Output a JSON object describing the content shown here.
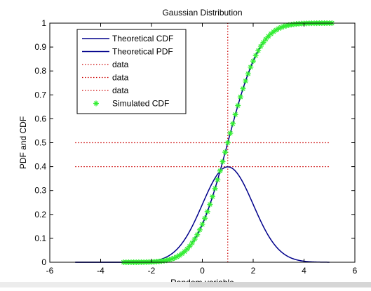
{
  "chart_data": {
    "type": "line",
    "title": "Gaussian Distribution",
    "xlabel": "Random variable",
    "ylabel": "PDF and CDF",
    "xlim": [
      -6,
      6
    ],
    "ylim": [
      0,
      1
    ],
    "xticks": [
      "-6",
      "-4",
      "-2",
      "0",
      "2",
      "4",
      "6"
    ],
    "yticks": [
      "0",
      "0.1",
      "0.2",
      "0.3",
      "0.4",
      "0.5",
      "0.6",
      "0.7",
      "0.8",
      "0.9",
      "1"
    ],
    "grid": false,
    "legend_position": "top-left",
    "distribution": {
      "mean": 1,
      "std": 1
    },
    "series": [
      {
        "name": "Theoretical CDF",
        "style": "solid",
        "color": "#00008b",
        "x_range": [
          -5,
          5
        ],
        "function": "normal_cdf"
      },
      {
        "name": "Theoretical PDF",
        "style": "solid",
        "color": "#00008b",
        "x_range": [
          -5,
          5
        ],
        "function": "normal_pdf"
      },
      {
        "name": "data",
        "style": "dotted",
        "color": "#cc0000",
        "x": [
          -5,
          5
        ],
        "y": [
          0.5,
          0.5
        ]
      },
      {
        "name": "data",
        "style": "dotted",
        "color": "#cc0000",
        "x": [
          -5,
          5
        ],
        "y": [
          0.4,
          0.4
        ]
      },
      {
        "name": "data",
        "style": "dotted",
        "color": "#cc0000",
        "x": [
          1,
          1
        ],
        "y": [
          0,
          1
        ]
      },
      {
        "name": "Simulated CDF",
        "style": "marker",
        "marker": "*",
        "color": "#33ee33",
        "x_range": [
          -3.1,
          5.1
        ],
        "x_step": 0.1,
        "function": "normal_cdf"
      }
    ],
    "legend_order": [
      0,
      1,
      2,
      3,
      4,
      5
    ]
  }
}
